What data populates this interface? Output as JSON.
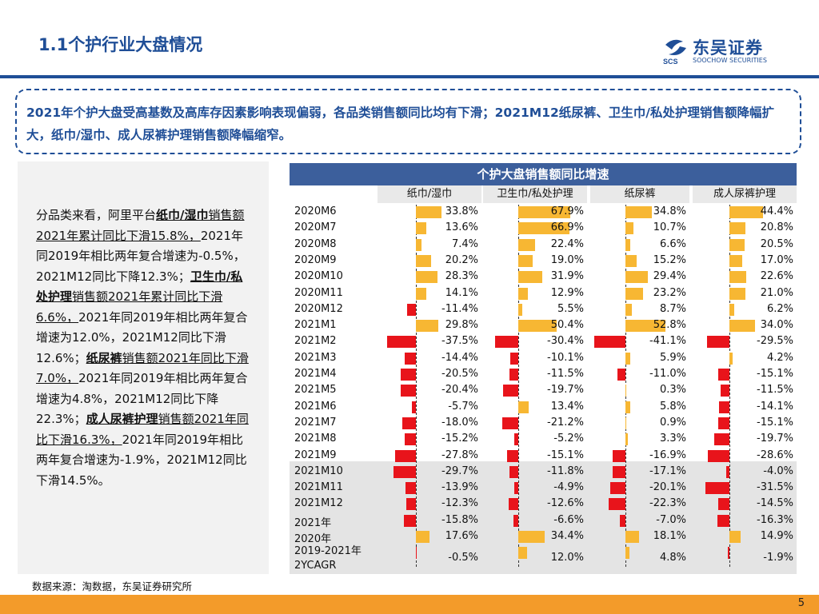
{
  "page": {
    "title": "1.1个护行业大盘情况",
    "logo_cn": "东吴证券",
    "logo_mark": "SCS",
    "logo_en": "SOOCHOW SECURITIES",
    "page_number": "5",
    "source": "数据来源：淘数据，东吴证券研究所"
  },
  "summary": "2021年个护大盘受高基数及高库存因素影响表现偏弱，各品类销售额同比均有下滑；2021M12纸尿裤、卫生巾/私处护理销售额降幅扩大，纸巾/湿巾、成人尿裤护理销售额降幅缩窄。",
  "left_text": {
    "p1": "分品类来看，阿里平台",
    "c1": "纸巾/湿巾",
    "p2": "销售额2021年累计同比下滑15.8%，",
    "p3": "2021年同2019年相比两年复合增速为-0.5%，2021M12同比下降12.3%；",
    "c2": "卫生巾/私处护理",
    "p4": "销售额2021年累计同比下滑6.6%，",
    "p5": "2021年同2019年相比两年复合增速为12.0%，2021M12同比下滑12.6%；",
    "c3": "纸尿裤",
    "p6": "销售额2021年同比下滑7.0%，",
    "p7": "2021年同2019年相比两年复合增速为4.8%，2021M12同比下降22.3%；",
    "c4": "成人尿裤护理",
    "p8": "销售额2021年同比下滑16.3%，",
    "p9": "2021年同2019年相比两年复合增速为-1.9%，2021M12同比下滑14.5%。"
  },
  "chart_data": {
    "type": "table",
    "title": "个护大盘销售额同比增速",
    "columns": [
      "纸巾/湿巾",
      "卫生巾/私处护理",
      "纸尿裤",
      "成人尿裤护理"
    ],
    "rows": [
      {
        "label": "2020M6",
        "values": [
          33.8,
          67.9,
          34.8,
          44.4
        ]
      },
      {
        "label": "2020M7",
        "values": [
          13.6,
          66.9,
          10.7,
          20.8
        ]
      },
      {
        "label": "2020M8",
        "values": [
          7.4,
          22.4,
          6.6,
          20.5
        ]
      },
      {
        "label": "2020M9",
        "values": [
          20.2,
          19.0,
          15.2,
          17.0
        ]
      },
      {
        "label": "2020M10",
        "values": [
          28.3,
          31.9,
          29.4,
          22.6
        ]
      },
      {
        "label": "2020M11",
        "values": [
          14.1,
          12.9,
          23.2,
          21.0
        ]
      },
      {
        "label": "2020M12",
        "values": [
          -11.4,
          5.5,
          8.7,
          6.2
        ]
      },
      {
        "label": "2021M1",
        "values": [
          29.8,
          50.4,
          52.8,
          34.0
        ]
      },
      {
        "label": "2021M2",
        "values": [
          -37.5,
          -30.4,
          -41.1,
          -29.5
        ]
      },
      {
        "label": "2021M3",
        "values": [
          -14.4,
          -10.1,
          5.9,
          4.2
        ]
      },
      {
        "label": "2021M4",
        "values": [
          -20.5,
          -11.5,
          -11.0,
          -15.1
        ]
      },
      {
        "label": "2021M5",
        "values": [
          -20.4,
          -19.7,
          0.3,
          -11.5
        ]
      },
      {
        "label": "2021M6",
        "values": [
          -5.7,
          13.4,
          5.8,
          -14.1
        ]
      },
      {
        "label": "2021M7",
        "values": [
          -18.0,
          -21.2,
          0.9,
          -15.1
        ]
      },
      {
        "label": "2021M8",
        "values": [
          -15.2,
          -5.2,
          3.3,
          -19.7
        ]
      },
      {
        "label": "2021M9",
        "values": [
          -27.8,
          -15.1,
          -16.9,
          -28.6
        ]
      },
      {
        "label": "2021M10",
        "values": [
          -29.7,
          -11.8,
          -17.1,
          -4.0
        ]
      },
      {
        "label": "2021M11",
        "values": [
          -13.9,
          -4.9,
          -20.1,
          -31.5
        ]
      },
      {
        "label": "2021M12",
        "values": [
          -12.3,
          -12.6,
          -22.3,
          -14.5
        ]
      },
      {
        "label": "2021年",
        "values": [
          -15.8,
          -6.6,
          -7.0,
          -16.3
        ]
      },
      {
        "label": "2020年",
        "values": [
          17.6,
          34.4,
          18.1,
          14.9
        ]
      },
      {
        "label": "2019-2021年 2YCAGR",
        "values": [
          -0.5,
          12.0,
          4.8,
          -1.9
        ]
      }
    ],
    "unit": "%",
    "positive_color": "#f7b733",
    "negative_color": "#e8141b"
  }
}
